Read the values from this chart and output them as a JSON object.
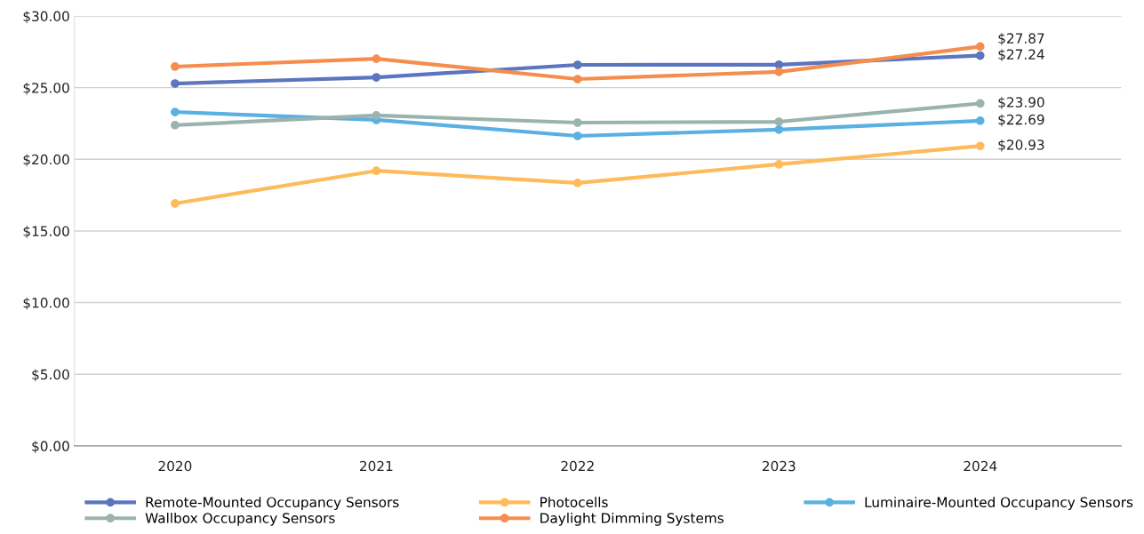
{
  "chart_data": {
    "type": "line",
    "categories": [
      "2020",
      "2021",
      "2022",
      "2023",
      "2024"
    ],
    "series": [
      {
        "name": "Remote-Mounted Occupancy Sensors",
        "color": "#5b75be",
        "values": [
          25.29,
          25.72,
          26.59,
          26.6,
          27.24
        ],
        "value_labels": [
          null,
          null,
          null,
          null,
          "$27.24"
        ]
      },
      {
        "name": "Photocells",
        "color": "#fdbb5b",
        "values": [
          16.92,
          19.2,
          18.35,
          19.65,
          20.93
        ],
        "value_labels": [
          null,
          null,
          null,
          null,
          "$20.93"
        ]
      },
      {
        "name": "Luminaire-Mounted Occupancy Sensors",
        "color": "#5ab0e2",
        "values": [
          23.3,
          22.75,
          21.63,
          22.07,
          22.69
        ],
        "value_labels": [
          null,
          null,
          null,
          null,
          "$22.69"
        ]
      },
      {
        "name": "Wallbox Occupancy Sensors",
        "color": "#9bb3ae",
        "values": [
          22.38,
          23.06,
          22.56,
          22.62,
          23.9
        ],
        "value_labels": [
          null,
          null,
          null,
          null,
          "$23.90"
        ]
      },
      {
        "name": "Daylight Dimming Systems",
        "color": "#f58d4f",
        "values": [
          26.47,
          27.02,
          25.6,
          26.1,
          27.87
        ],
        "value_labels": [
          null,
          null,
          null,
          null,
          "$27.87"
        ]
      }
    ],
    "ylim": [
      0,
      30
    ],
    "yticks": [
      {
        "value": 0,
        "label": "$0.00"
      },
      {
        "value": 5,
        "label": "$5.00"
      },
      {
        "value": 10,
        "label": "$10.00"
      },
      {
        "value": 15,
        "label": "$15.00"
      },
      {
        "value": 20,
        "label": "$20.00"
      },
      {
        "value": 25,
        "label": "$25.00"
      },
      {
        "value": 30,
        "label": "$30.00"
      }
    ],
    "grid": "y",
    "legend": "bottom",
    "marker": "circle",
    "line_style": "solid"
  }
}
